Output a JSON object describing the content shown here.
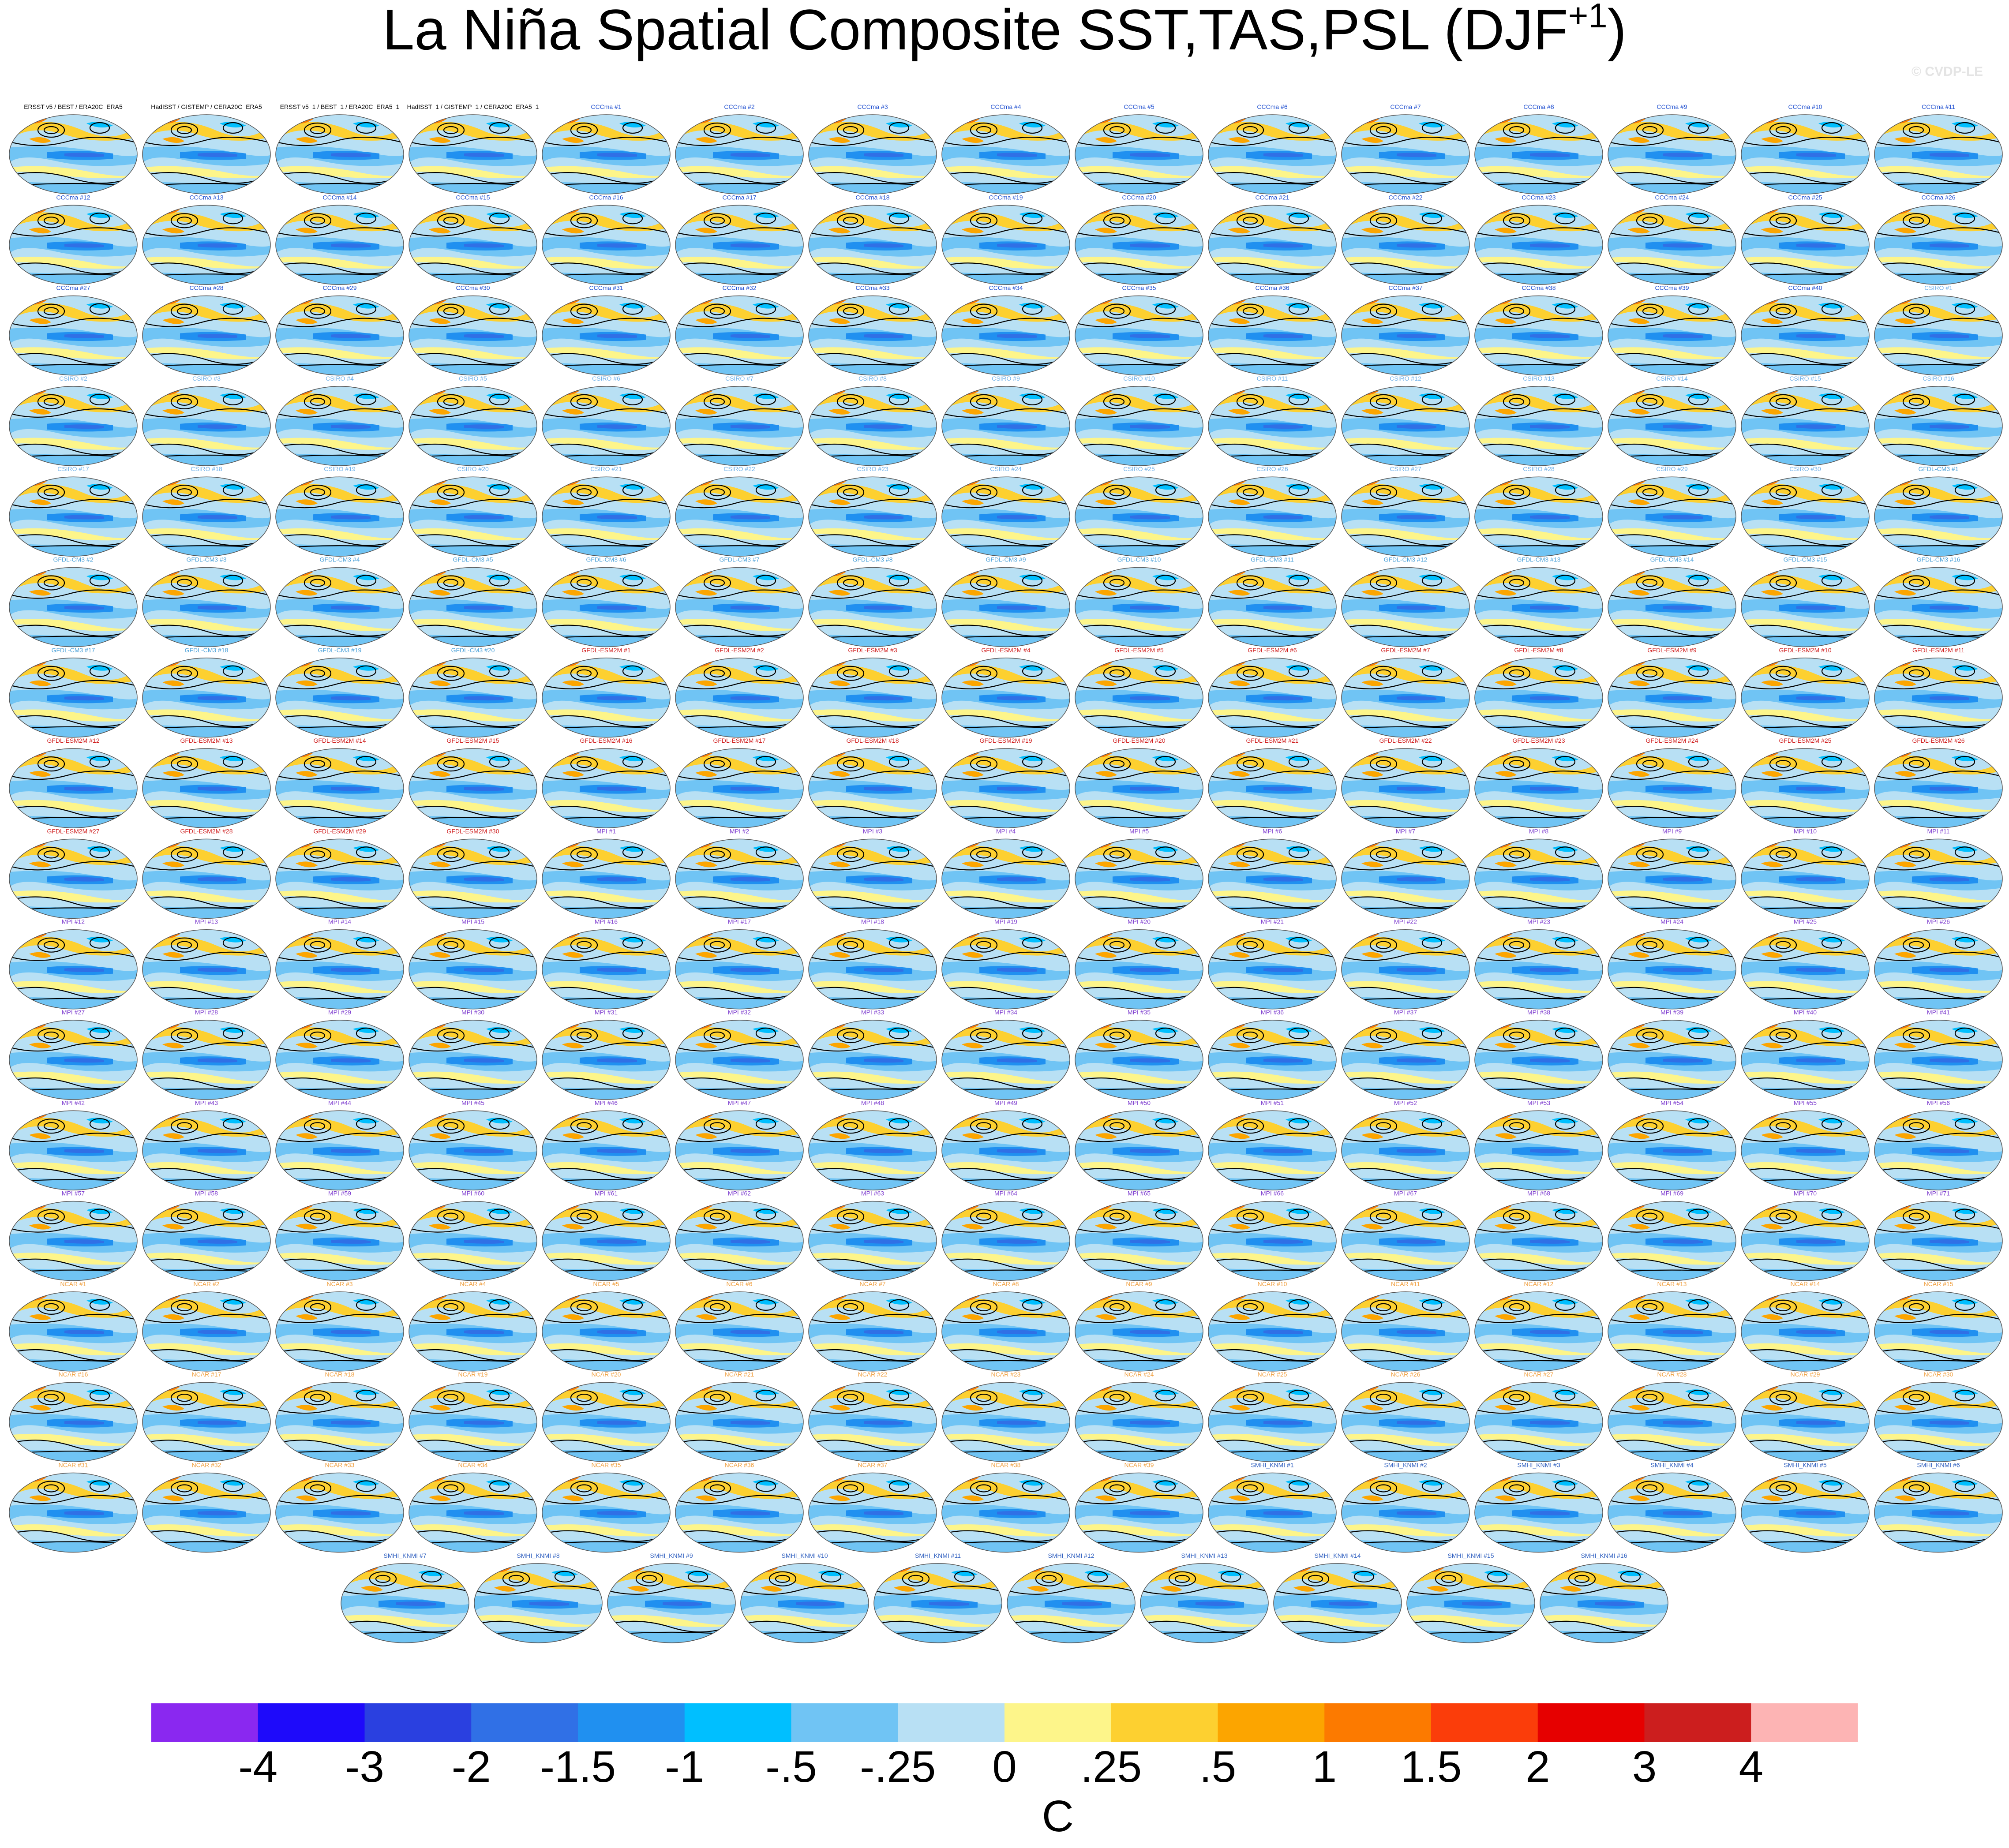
{
  "header": {
    "title": "La Niña Spatial Composite SST,TAS,PSL (DJF",
    "title_sup": "+1",
    "title_end": ")",
    "credit": "© CVDP-LE"
  },
  "groups": [
    {
      "color": "#000000",
      "titles": [
        "ERSST v5 / BEST / ERA20C_ERA5",
        "HadISST / GISTEMP / CERA20C_ERA5",
        "ERSST v5_1 / BEST_1 / ERA20C_ERA5_1",
        "HadISST_1 / GISTEMP_1 / CERA20C_ERA5_1"
      ]
    },
    {
      "color": "#1f4fd0",
      "titles": [
        "CCCma #1",
        "CCCma #2",
        "CCCma #3",
        "CCCma #4",
        "CCCma #5",
        "CCCma #6",
        "CCCma #7",
        "CCCma #8",
        "CCCma #9",
        "CCCma #10",
        "CCCma #11",
        "CCCma #12",
        "CCCma #13",
        "CCCma #14",
        "CCCma #15",
        "CCCma #16",
        "CCCma #17",
        "CCCma #18",
        "CCCma #19",
        "CCCma #20",
        "CCCma #21",
        "CCCma #22",
        "CCCma #23",
        "CCCma #24",
        "CCCma #25",
        "CCCma #26",
        "CCCma #27",
        "CCCma #28",
        "CCCma #29",
        "CCCma #30",
        "CCCma #31",
        "CCCma #32",
        "CCCma #33",
        "CCCma #34",
        "CCCma #35",
        "CCCma #36",
        "CCCma #37",
        "CCCma #38",
        "CCCma #39",
        "CCCma #40"
      ]
    },
    {
      "color": "#6fb0e8",
      "titles": [
        "CSIRO #1",
        "CSIRO #2",
        "CSIRO #3",
        "CSIRO #4",
        "CSIRO #5",
        "CSIRO #6",
        "CSIRO #7",
        "CSIRO #8",
        "CSIRO #9",
        "CSIRO #10",
        "CSIRO #11",
        "CSIRO #12",
        "CSIRO #13",
        "CSIRO #14",
        "CSIRO #15",
        "CSIRO #16",
        "CSIRO #17",
        "CSIRO #18",
        "CSIRO #19",
        "CSIRO #20",
        "CSIRO #21",
        "CSIRO #22",
        "CSIRO #23",
        "CSIRO #24",
        "CSIRO #25",
        "CSIRO #26",
        "CSIRO #27",
        "CSIRO #28",
        "CSIRO #29",
        "CSIRO #30"
      ]
    },
    {
      "color": "#4aa0d8",
      "titles": [
        "GFDL-CM3 #1",
        "GFDL-CM3 #2",
        "GFDL-CM3 #3",
        "GFDL-CM3 #4",
        "GFDL-CM3 #5",
        "GFDL-CM3 #6",
        "GFDL-CM3 #7",
        "GFDL-CM3 #8",
        "GFDL-CM3 #9",
        "GFDL-CM3 #10",
        "GFDL-CM3 #11",
        "GFDL-CM3 #12",
        "GFDL-CM3 #13",
        "GFDL-CM3 #14",
        "GFDL-CM3 #15",
        "GFDL-CM3 #16",
        "GFDL-CM3 #17",
        "GFDL-CM3 #18",
        "GFDL-CM3 #19",
        "GFDL-CM3 #20"
      ]
    },
    {
      "color": "#d02020",
      "titles": [
        "GFDL-ESM2M #1",
        "GFDL-ESM2M #2",
        "GFDL-ESM2M #3",
        "GFDL-ESM2M #4",
        "GFDL-ESM2M #5",
        "GFDL-ESM2M #6",
        "GFDL-ESM2M #7",
        "GFDL-ESM2M #8",
        "GFDL-ESM2M #9",
        "GFDL-ESM2M #10",
        "GFDL-ESM2M #11",
        "GFDL-ESM2M #12",
        "GFDL-ESM2M #13",
        "GFDL-ESM2M #14",
        "GFDL-ESM2M #15",
        "GFDL-ESM2M #16",
        "GFDL-ESM2M #17",
        "GFDL-ESM2M #18",
        "GFDL-ESM2M #19",
        "GFDL-ESM2M #20",
        "GFDL-ESM2M #21",
        "GFDL-ESM2M #22",
        "GFDL-ESM2M #23",
        "GFDL-ESM2M #24",
        "GFDL-ESM2M #25",
        "GFDL-ESM2M #26",
        "GFDL-ESM2M #27",
        "GFDL-ESM2M #28",
        "GFDL-ESM2M #29",
        "GFDL-ESM2M #30"
      ]
    },
    {
      "color": "#8040d0",
      "titles": [
        "MPI #1",
        "MPI #2",
        "MPI #3",
        "MPI #4",
        "MPI #5",
        "MPI #6",
        "MPI #7",
        "MPI #8",
        "MPI #9",
        "MPI #10",
        "MPI #11",
        "MPI #12",
        "MPI #13",
        "MPI #14",
        "MPI #15",
        "MPI #16",
        "MPI #17",
        "MPI #18",
        "MPI #19",
        "MPI #20",
        "MPI #21",
        "MPI #22",
        "MPI #23",
        "MPI #24",
        "MPI #25",
        "MPI #26",
        "MPI #27",
        "MPI #28",
        "MPI #29",
        "MPI #30",
        "MPI #31",
        "MPI #32",
        "MPI #33",
        "MPI #34",
        "MPI #35",
        "MPI #36",
        "MPI #37",
        "MPI #38",
        "MPI #39",
        "MPI #40",
        "MPI #41",
        "MPI #42",
        "MPI #43",
        "MPI #44",
        "MPI #45",
        "MPI #46",
        "MPI #47",
        "MPI #48",
        "MPI #49",
        "MPI #50",
        "MPI #51",
        "MPI #52",
        "MPI #53",
        "MPI #54",
        "MPI #55",
        "MPI #56",
        "MPI #57",
        "MPI #58",
        "MPI #59",
        "MPI #60",
        "MPI #61",
        "MPI #62",
        "MPI #63",
        "MPI #64",
        "MPI #65",
        "MPI #66",
        "MPI #67",
        "MPI #68",
        "MPI #69",
        "MPI #70",
        "MPI #71"
      ]
    },
    {
      "color": "#f0a040",
      "titles": [
        "NCAR #1",
        "NCAR #2",
        "NCAR #3",
        "NCAR #4",
        "NCAR #5",
        "NCAR #6",
        "NCAR #7",
        "NCAR #8",
        "NCAR #9",
        "NCAR #10",
        "NCAR #11",
        "NCAR #12",
        "NCAR #13",
        "NCAR #14",
        "NCAR #15",
        "NCAR #16",
        "NCAR #17",
        "NCAR #18",
        "NCAR #19",
        "NCAR #20",
        "NCAR #21",
        "NCAR #22",
        "NCAR #23",
        "NCAR #24",
        "NCAR #25",
        "NCAR #26",
        "NCAR #27",
        "NCAR #28",
        "NCAR #29",
        "NCAR #30",
        "NCAR #31",
        "NCAR #32",
        "NCAR #33",
        "NCAR #34",
        "NCAR #35",
        "NCAR #36",
        "NCAR #37",
        "NCAR #38",
        "NCAR #39"
      ]
    },
    {
      "color": "#3060c0",
      "titles": [
        "SMHI_KNMI #1",
        "SMHI_KNMI #2",
        "SMHI_KNMI #3",
        "SMHI_KNMI #4",
        "SMHI_KNMI #5",
        "SMHI_KNMI #6",
        "SMHI_KNMI #7",
        "SMHI_KNMI #8",
        "SMHI_KNMI #9",
        "SMHI_KNMI #10",
        "SMHI_KNMI #11",
        "SMHI_KNMI #12",
        "SMHI_KNMI #13",
        "SMHI_KNMI #14",
        "SMHI_KNMI #15",
        "SMHI_KNMI #16"
      ]
    }
  ],
  "colorbar": {
    "colors": [
      "#8a28f0",
      "#1e0afa",
      "#2a40e0",
      "#3070e6",
      "#2090f0",
      "#00bfff",
      "#70c4f4",
      "#b8e0f4",
      "#fdf58a",
      "#fdd030",
      "#fca500",
      "#fc7a00",
      "#fb3d0a",
      "#e60000",
      "#cc1e1e",
      "#fdb4b4"
    ],
    "labels": [
      "-4",
      "-3",
      "-2",
      "-1.5",
      "-1",
      "-.5",
      "-.25",
      "0",
      ".25",
      ".5",
      "1",
      "1.5",
      "2",
      "3",
      "4"
    ],
    "unit": "C"
  }
}
